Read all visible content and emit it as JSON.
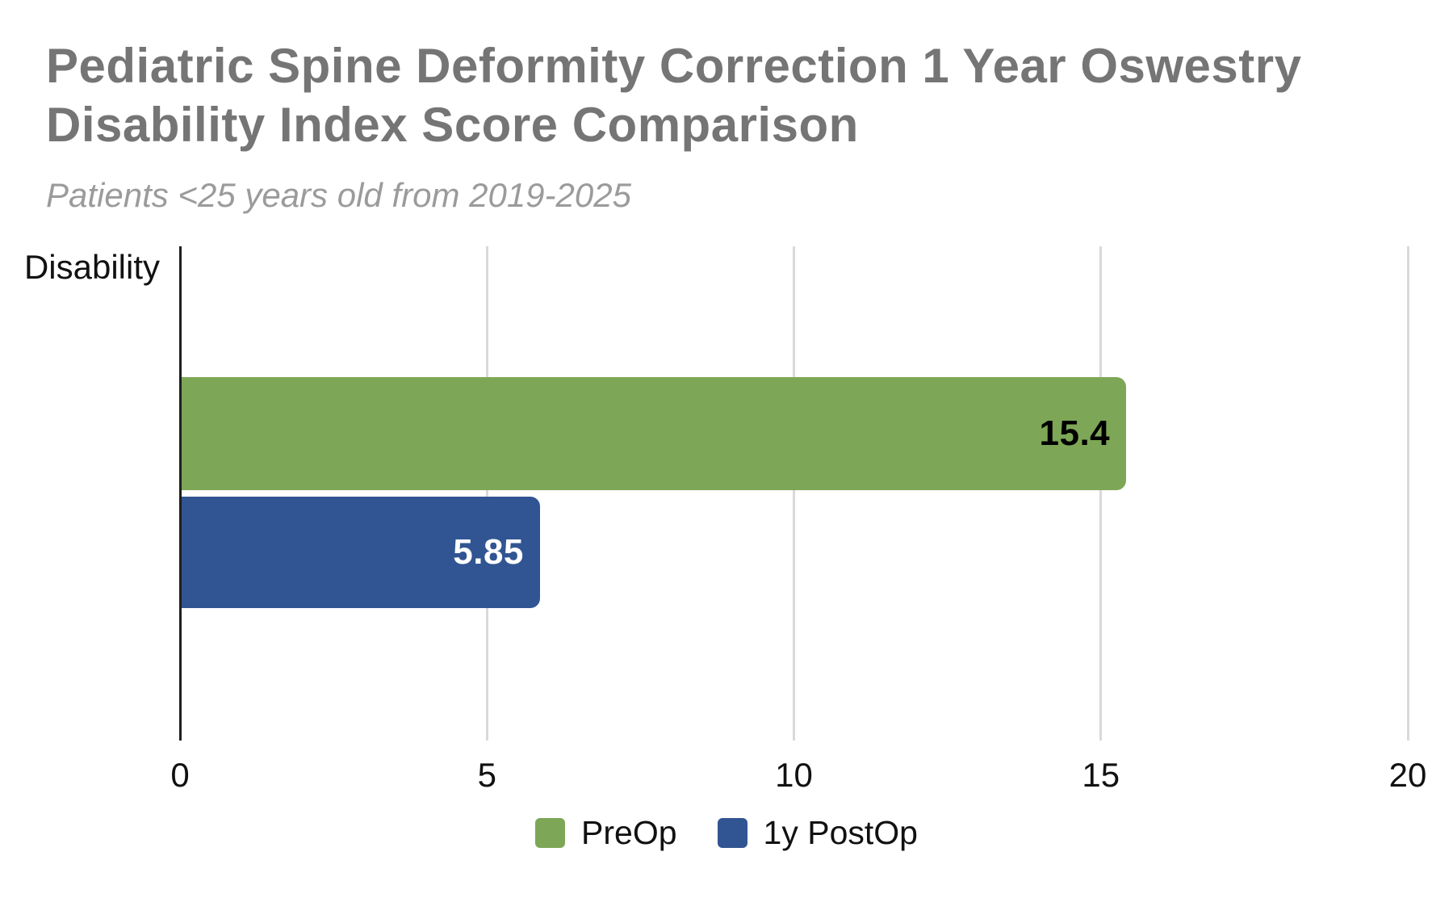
{
  "title": "Pediatric Spine Deformity Correction 1 Year Oswestry Disability Index Score Comparison",
  "subtitle": "Patients <25 years old from 2019-2025",
  "colors": {
    "title_text": "#757575",
    "subtitle_text": "#9b9b9b",
    "axis_line": "#1f1f1f",
    "gridline": "#d9d9d9",
    "preop_green": "#7da756",
    "postop_blue": "#315592"
  },
  "chart_data": {
    "type": "bar",
    "orientation": "horizontal",
    "title": "Pediatric Spine Deformity Correction 1 Year Oswestry Disability Index Score Comparison",
    "subtitle": "Patients <25 years old from 2019-2025",
    "categories": [
      "Disability"
    ],
    "series": [
      {
        "name": "PreOp",
        "values": [
          15.4
        ],
        "color": "#7da756",
        "value_label": "15.4",
        "value_label_color": "#000000"
      },
      {
        "name": "1y PostOp",
        "values": [
          5.85
        ],
        "color": "#315592",
        "value_label": "5.85",
        "value_label_color": "#ffffff"
      }
    ],
    "xlabel": "",
    "ylabel": "",
    "xlim": [
      0,
      20
    ],
    "x_ticks": [
      "0",
      "5",
      "10",
      "15",
      "20"
    ],
    "grid": true,
    "data_labels": true,
    "legend_position": "bottom"
  },
  "legend": {
    "items": [
      {
        "label": "PreOp",
        "color": "#7da756"
      },
      {
        "label": "1y PostOp",
        "color": "#315592"
      }
    ]
  }
}
